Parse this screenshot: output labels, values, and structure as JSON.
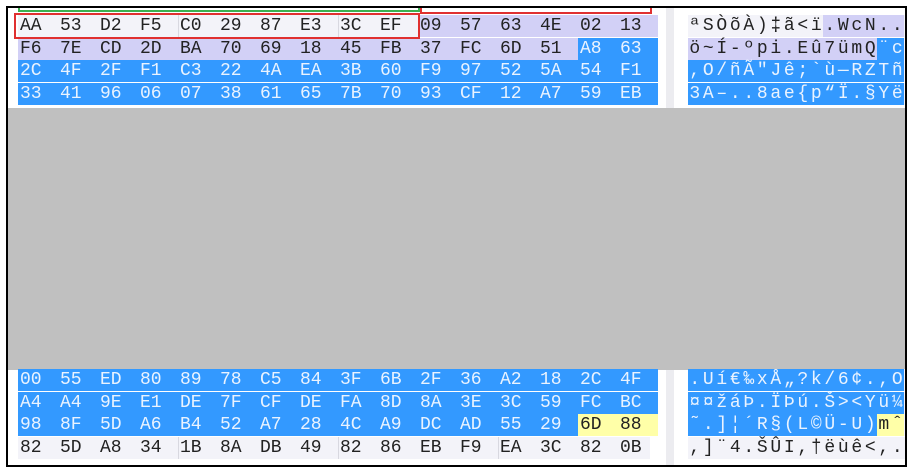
{
  "colors": {
    "selection": "#3399ff",
    "highlight": "#d2d0f6",
    "marker": "#ffffa8",
    "redacted": "#c0c0c0",
    "box_red": "#e03030",
    "box_green": "#3cb050"
  },
  "top_rows": [
    {
      "hex": [
        "AA",
        "53",
        "D2",
        "F5",
        "C0",
        "29",
        "87",
        "E3",
        "3C",
        "EF",
        "09",
        "57",
        "63",
        "4E",
        "02",
        "13"
      ],
      "text": "ªSÒõÀ)‡ã<ï.WcN..",
      "styles": "nnnnnnnnnnllllll"
    },
    {
      "hex": [
        "F6",
        "7E",
        "CD",
        "2D",
        "BA",
        "70",
        "69",
        "18",
        "45",
        "FB",
        "37",
        "FC",
        "6D",
        "51",
        "A8",
        "63"
      ],
      "text": "ö~Í-ºpi.Eû7ümQ¨c",
      "styles": "llllllllllllllbb"
    },
    {
      "hex": [
        "2C",
        "4F",
        "2F",
        "F1",
        "C3",
        "22",
        "4A",
        "EA",
        "3B",
        "60",
        "F9",
        "97",
        "52",
        "5A",
        "54",
        "F1"
      ],
      "text": ",O/ñÃ\"Jê;`ù—RZTñ",
      "styles": "bbbbbbbbbbbbbbbb"
    },
    {
      "hex": [
        "33",
        "41",
        "96",
        "06",
        "07",
        "38",
        "61",
        "65",
        "7B",
        "70",
        "93",
        "CF",
        "12",
        "A7",
        "59",
        "EB"
      ],
      "text": "3A–..8ae{p“Ï.§Yë",
      "styles": "bbbbbbbbbbbbbbbb"
    }
  ],
  "bottom_rows": [
    {
      "hex": [
        "00",
        "55",
        "ED",
        "80",
        "89",
        "78",
        "C5",
        "84",
        "3F",
        "6B",
        "2F",
        "36",
        "A2",
        "18",
        "2C",
        "4F"
      ],
      "text": ".Uí€‰xÅ„?k/6¢.,O",
      "styles": "bbbbbbbbbbbbbbbb"
    },
    {
      "hex": [
        "A4",
        "A4",
        "9E",
        "E1",
        "DE",
        "7F",
        "CF",
        "DE",
        "FA",
        "8D",
        "8A",
        "3E",
        "3C",
        "59",
        "FC",
        "BC"
      ],
      "text": "¤¤žáÞ.ÏÞú.Š><Yü¼",
      "styles": "bbbbbbbbbbbbbbbb"
    },
    {
      "hex": [
        "98",
        "8F",
        "5D",
        "A6",
        "B4",
        "52",
        "A7",
        "28",
        "4C",
        "A9",
        "DC",
        "AD",
        "55",
        "29",
        "6D",
        "88"
      ],
      "text": "˜.]¦´R§(L©Ü-U)mˆ",
      "styles": "bbbbbbbbbbbbbbyy"
    },
    {
      "hex": [
        "82",
        "5D",
        "A8",
        "34",
        "1B",
        "8A",
        "DB",
        "49",
        "82",
        "86",
        "EB",
        "F9",
        "EA",
        "3C",
        "82",
        "0B"
      ],
      "text": ",]¨4.ŠÛI,†ëùê<,.",
      "styles": "nnnnnnnnnnnnnnnn"
    }
  ]
}
